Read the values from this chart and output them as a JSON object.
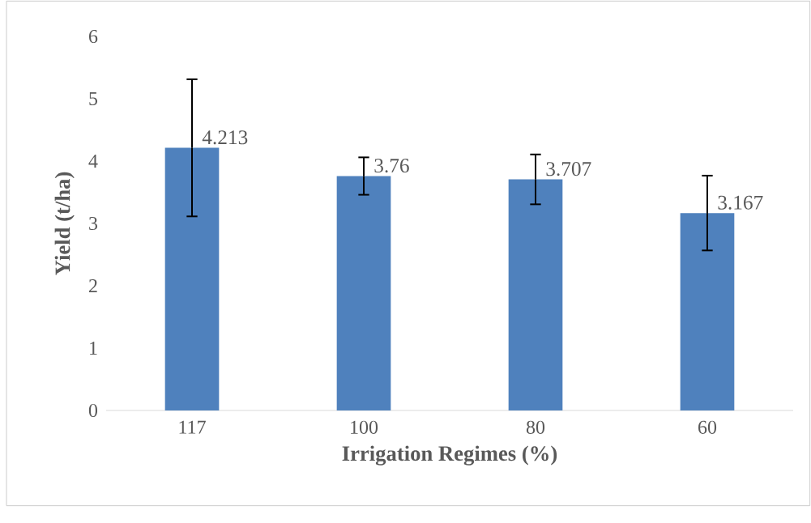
{
  "chart_data": {
    "type": "bar",
    "xlabel": "Irrigation Regimes (%)",
    "ylabel": "Yield (t/ha)",
    "categories": [
      "117",
      "100",
      "80",
      "60"
    ],
    "values": [
      4.213,
      3.76,
      3.707,
      3.167
    ],
    "errors": [
      1.1,
      0.3,
      0.4,
      0.6
    ],
    "color": "#4f81bd",
    "ylim": [
      0,
      6
    ],
    "yticks": [
      0,
      1,
      2,
      3,
      4,
      5,
      6
    ],
    "data_labels": true
  }
}
